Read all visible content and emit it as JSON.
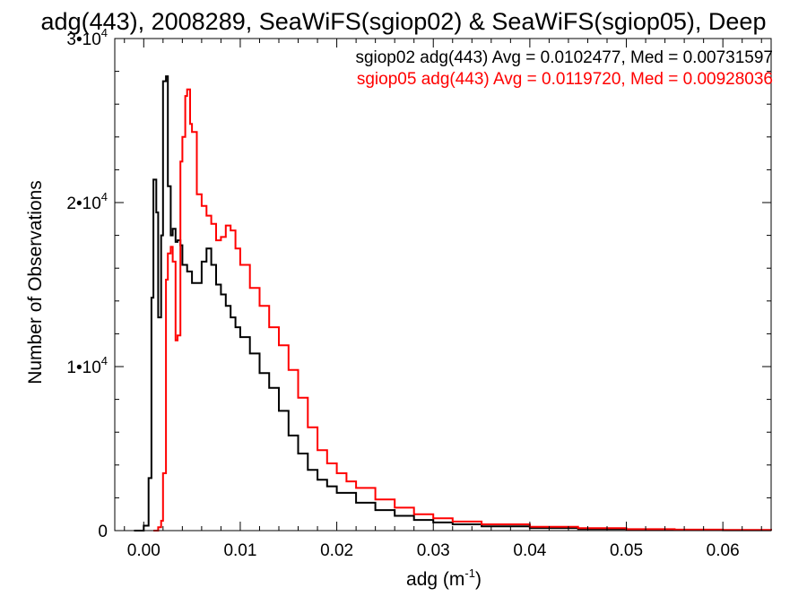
{
  "chart_data": {
    "type": "line",
    "title": "adg(443), 2008289, SeaWiFS(sgiop02) & SeaWiFS(sgiop05), Deep",
    "xlabel": "adg (m",
    "xlabel_sup": "-1",
    "xlabel_tail": ")",
    "ylabel": "Number of Observations",
    "xlim": [
      -0.003,
      0.065
    ],
    "ylim": [
      0,
      30000
    ],
    "x_ticks": [
      {
        "value": 0.0,
        "label": "0.00"
      },
      {
        "value": 0.01,
        "label": "0.01"
      },
      {
        "value": 0.02,
        "label": "0.02"
      },
      {
        "value": 0.03,
        "label": "0.03"
      },
      {
        "value": 0.04,
        "label": "0.04"
      },
      {
        "value": 0.05,
        "label": "0.05"
      },
      {
        "value": 0.06,
        "label": "0.06"
      }
    ],
    "y_ticks": [
      {
        "value": 0,
        "label": "0",
        "sup": ""
      },
      {
        "value": 10000,
        "label": "1•10",
        "sup": "4"
      },
      {
        "value": 20000,
        "label": "2•10",
        "sup": "4"
      },
      {
        "value": 30000,
        "label": "3•10",
        "sup": "4"
      }
    ],
    "grid": false,
    "legend_position": "top-right",
    "series": [
      {
        "name": "sgiop02",
        "legend": "sgiop02 adg(443) Avg = 0.0102477, Med = 0.00731597",
        "color": "#000000",
        "x": [
          -0.001,
          0.0,
          0.0005,
          0.0008,
          0.001,
          0.0013,
          0.0015,
          0.0018,
          0.002,
          0.0023,
          0.0025,
          0.0028,
          0.003,
          0.0033,
          0.0035,
          0.0038,
          0.004,
          0.0045,
          0.005,
          0.0055,
          0.006,
          0.0065,
          0.007,
          0.0075,
          0.008,
          0.0085,
          0.009,
          0.0095,
          0.01,
          0.011,
          0.012,
          0.013,
          0.014,
          0.015,
          0.016,
          0.017,
          0.018,
          0.019,
          0.02,
          0.022,
          0.024,
          0.026,
          0.028,
          0.03,
          0.032,
          0.035,
          0.04,
          0.045,
          0.05,
          0.055,
          0.06,
          0.065
        ],
        "y": [
          0,
          300,
          3200,
          14200,
          21400,
          19400,
          13000,
          18000,
          27400,
          27700,
          21000,
          18000,
          18400,
          17600,
          17700,
          17400,
          16200,
          15800,
          15100,
          15100,
          16400,
          17200,
          16200,
          15000,
          14400,
          13700,
          13000,
          12400,
          11800,
          10800,
          9600,
          8700,
          7300,
          5800,
          4700,
          3700,
          3100,
          2700,
          2300,
          1700,
          1250,
          900,
          650,
          500,
          380,
          260,
          160,
          100,
          60,
          40,
          20,
          10
        ]
      },
      {
        "name": "sgiop05",
        "legend": "sgiop05 adg(443) Avg = 0.0119720, Med = 0.00928036",
        "color": "#ff0000",
        "x": [
          0.001,
          0.0015,
          0.0018,
          0.002,
          0.0023,
          0.0025,
          0.0028,
          0.003,
          0.0033,
          0.0035,
          0.0038,
          0.004,
          0.0043,
          0.0045,
          0.0048,
          0.005,
          0.0055,
          0.006,
          0.0065,
          0.007,
          0.0075,
          0.008,
          0.0085,
          0.009,
          0.0095,
          0.01,
          0.011,
          0.012,
          0.013,
          0.014,
          0.015,
          0.016,
          0.017,
          0.018,
          0.019,
          0.02,
          0.021,
          0.022,
          0.024,
          0.026,
          0.028,
          0.03,
          0.032,
          0.035,
          0.04,
          0.045,
          0.05,
          0.055,
          0.06,
          0.065
        ],
        "y": [
          0,
          200,
          600,
          3500,
          15300,
          16900,
          17300,
          16400,
          11600,
          11900,
          22500,
          24000,
          26500,
          26900,
          24800,
          24300,
          20500,
          19800,
          19200,
          18700,
          17700,
          17900,
          18600,
          18300,
          17200,
          16200,
          14800,
          13700,
          12400,
          11300,
          9800,
          8100,
          6300,
          4900,
          4100,
          3500,
          3000,
          2600,
          1900,
          1400,
          1000,
          750,
          550,
          380,
          230,
          150,
          90,
          60,
          40,
          20
        ]
      }
    ]
  }
}
